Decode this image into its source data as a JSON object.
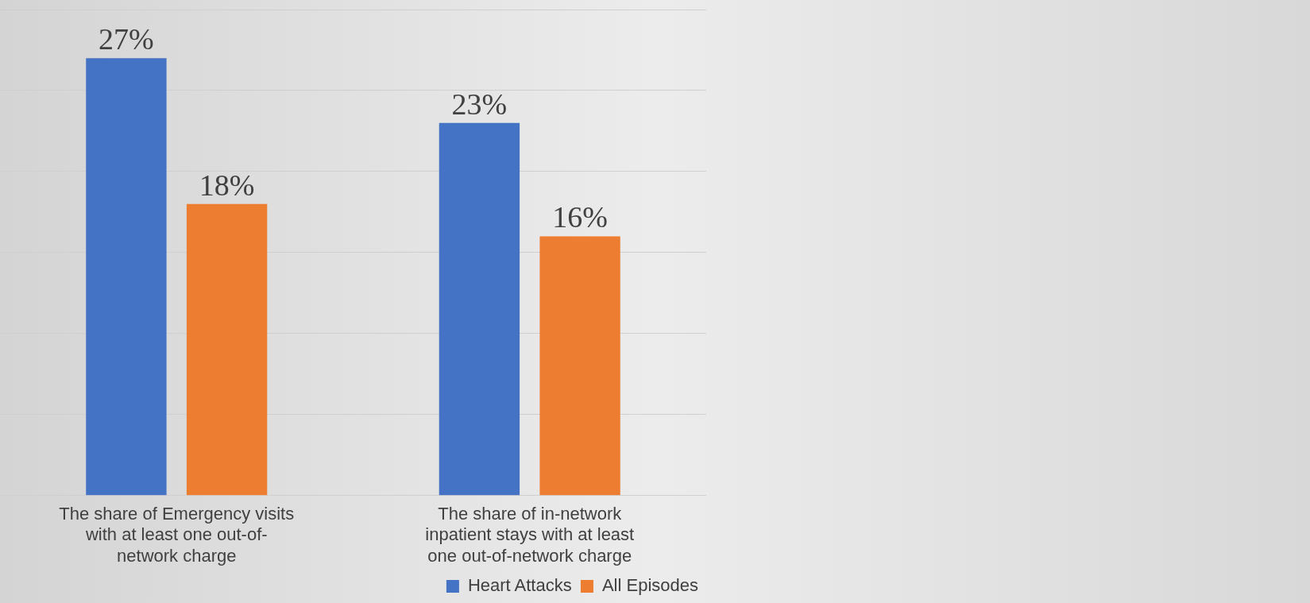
{
  "chart_data": {
    "type": "bar",
    "categories": [
      "The share of Emergency visits with at least one out-of-network charge",
      "The share of in-network inpatient stays with at least one out-of-network charge"
    ],
    "series": [
      {
        "name": "Heart Attacks",
        "color": "#4472c4",
        "values": [
          27,
          23
        ],
        "value_labels": [
          "27%",
          "23%"
        ]
      },
      {
        "name": "All Episodes",
        "color": "#ed7d31",
        "values": [
          18,
          16
        ],
        "value_labels": [
          "18%",
          "16%"
        ]
      }
    ],
    "grid": "y",
    "legend": "bottom right"
  }
}
